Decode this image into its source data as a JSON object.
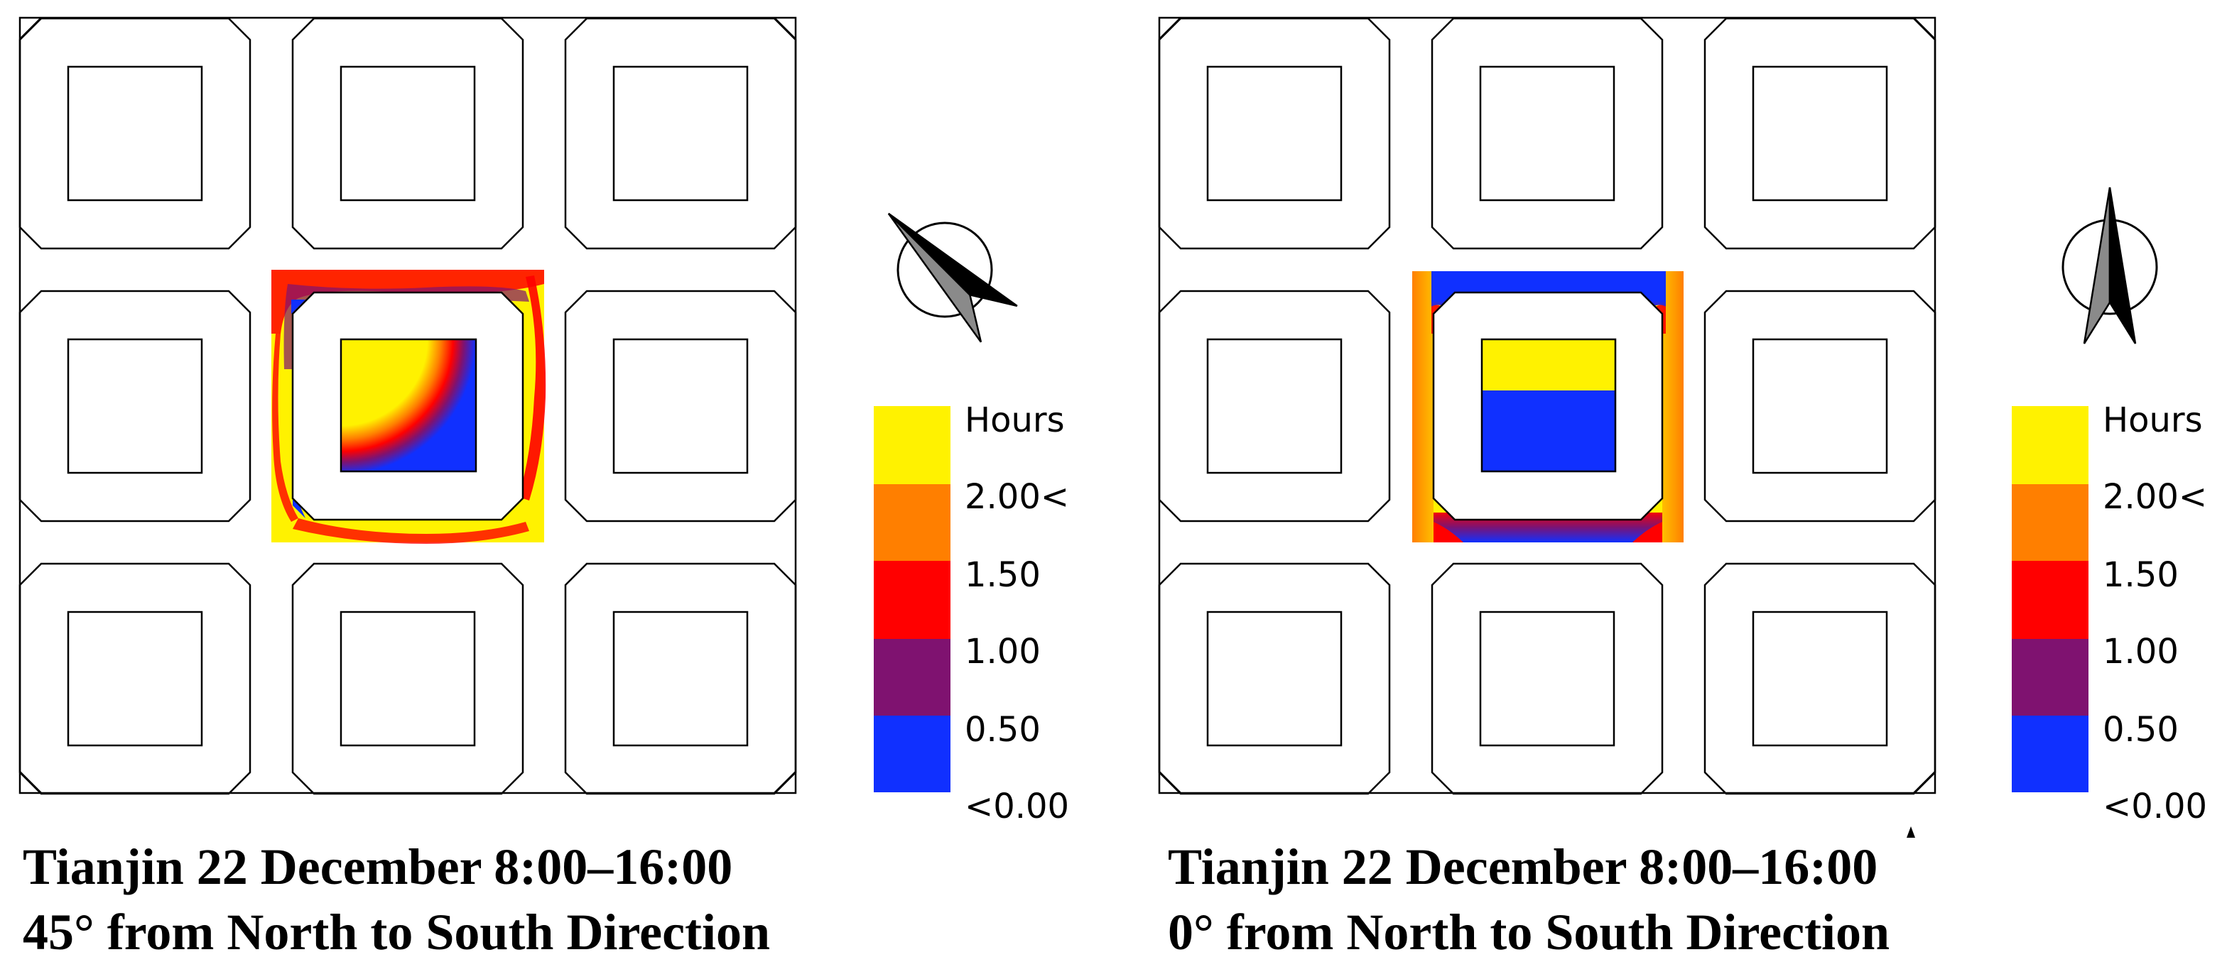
{
  "panels": [
    {
      "id": "left",
      "caption_line1": "Tianjin 22 December 8:00–16:00",
      "caption_line2": "45° from North to South Direction",
      "north_arrow_rotation_deg": -45,
      "legend": {
        "title": "Hours",
        "labels": [
          "2.00<",
          "1.50",
          "1.00",
          "0.50",
          "<0.00"
        ]
      }
    },
    {
      "id": "right",
      "caption_line1": "Tianjin 22 December 8:00–16:00",
      "caption_line2": "0° from North to South Direction",
      "north_arrow_rotation_deg": 0,
      "legend": {
        "title": "Hours",
        "labels": [
          "2.00<",
          "1.50",
          "1.00",
          "0.50",
          "<0.00"
        ]
      }
    }
  ],
  "legend_colors": {
    "over_2_00": "#fff200",
    "band_1_50": "#ff7f00",
    "band_1_00": "#ff0000",
    "band_0_50": "#7f1270",
    "band_0_00": "#1030ff"
  },
  "colors": {
    "outline": "#000000",
    "yellow": "#fff200",
    "orange": "#ff7f00",
    "red": "#ff0000",
    "purple": "#7f1270",
    "blue": "#1030ff",
    "arrow_gray": "#8a8a8a"
  }
}
